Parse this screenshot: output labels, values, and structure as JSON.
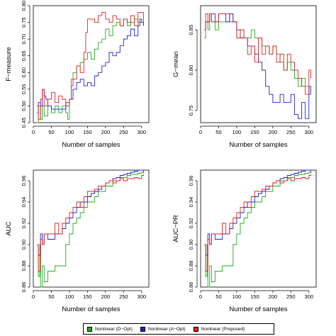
{
  "chart_data": [
    {
      "type": "line",
      "ylabel": "F−measure",
      "xlabel": "Number of samples",
      "xlim": [
        0,
        320
      ],
      "ylim": [
        0.45,
        0.8
      ],
      "xticks": [
        0,
        50,
        100,
        150,
        200,
        250,
        300
      ],
      "yticks": [
        0.45,
        0.5,
        0.55,
        0.6,
        0.65,
        0.7,
        0.75,
        0.8
      ],
      "ytick_labels": [
        "0.45",
        "0.50",
        "0.55",
        "0.60",
        "0.65",
        "0.70",
        "0.75",
        "0.80"
      ],
      "series": [
        {
          "name": "Nonlinear (D−Opt)",
          "x": [
            10,
            14,
            20,
            25,
            30,
            40,
            50,
            60,
            70,
            80,
            90,
            95,
            100,
            105,
            110,
            120,
            130,
            140,
            150,
            160,
            170,
            180,
            190,
            200,
            210,
            220,
            230,
            240,
            250,
            260,
            270,
            280,
            290,
            300,
            305
          ],
          "y": [
            0.45,
            0.5,
            0.46,
            0.5,
            0.47,
            0.5,
            0.48,
            0.5,
            0.48,
            0.5,
            0.48,
            0.46,
            0.52,
            0.58,
            0.6,
            0.62,
            0.63,
            0.64,
            0.66,
            0.64,
            0.67,
            0.69,
            0.7,
            0.73,
            0.71,
            0.74,
            0.75,
            0.74,
            0.76,
            0.74,
            0.75,
            0.76,
            0.75,
            0.75,
            0.74
          ]
        },
        {
          "name": "Nonlinear (A−Opt)",
          "x": [
            10,
            14,
            20,
            25,
            30,
            35,
            40,
            50,
            60,
            70,
            80,
            90,
            100,
            110,
            120,
            130,
            140,
            150,
            160,
            170,
            180,
            190,
            200,
            210,
            220,
            230,
            240,
            250,
            260,
            270,
            280,
            290,
            295,
            300,
            305
          ],
          "y": [
            0.48,
            0.51,
            0.5,
            0.55,
            0.53,
            0.52,
            0.5,
            0.49,
            0.49,
            0.49,
            0.49,
            0.51,
            0.52,
            0.55,
            0.57,
            0.58,
            0.56,
            0.57,
            0.56,
            0.59,
            0.6,
            0.62,
            0.63,
            0.66,
            0.65,
            0.66,
            0.68,
            0.7,
            0.71,
            0.73,
            0.71,
            0.74,
            0.76,
            0.75,
            0.74
          ]
        },
        {
          "name": "Nonlinear (Proposed)",
          "x": [
            10,
            14,
            20,
            25,
            30,
            40,
            50,
            60,
            70,
            80,
            90,
            100,
            105,
            110,
            120,
            130,
            140,
            145,
            150,
            160,
            170,
            180,
            190,
            200,
            210,
            220,
            230,
            240,
            250,
            260,
            270,
            280,
            290,
            300,
            305
          ],
          "y": [
            0.5,
            0.46,
            0.52,
            0.55,
            0.5,
            0.52,
            0.54,
            0.51,
            0.53,
            0.52,
            0.5,
            0.52,
            0.56,
            0.58,
            0.62,
            0.6,
            0.66,
            0.72,
            0.76,
            0.76,
            0.75,
            0.77,
            0.78,
            0.76,
            0.75,
            0.77,
            0.76,
            0.74,
            0.76,
            0.75,
            0.77,
            0.74,
            0.78,
            0.78,
            0.75
          ]
        }
      ]
    },
    {
      "type": "line",
      "ylabel": "G−mean",
      "xlabel": "Number of samples",
      "xlim": [
        0,
        320
      ],
      "ylim": [
        0.735,
        0.88
      ],
      "xticks": [
        0,
        50,
        100,
        150,
        200,
        250,
        300
      ],
      "yticks": [
        0.75,
        0.8,
        0.85
      ],
      "ytick_labels": [
        "0.75",
        "0.80",
        "0.85"
      ],
      "series": [
        {
          "name": "Nonlinear (D−Opt)",
          "x": [
            10,
            14,
            20,
            25,
            30,
            40,
            50,
            60,
            70,
            80,
            90,
            100,
            110,
            120,
            130,
            140,
            150,
            160,
            170,
            180,
            190,
            200,
            210,
            220,
            230,
            240,
            250,
            260,
            270,
            280,
            290,
            300,
            305
          ],
          "y": [
            0.84,
            0.86,
            0.85,
            0.87,
            0.86,
            0.85,
            0.86,
            0.86,
            0.86,
            0.87,
            0.86,
            0.84,
            0.85,
            0.84,
            0.84,
            0.85,
            0.84,
            0.84,
            0.83,
            0.83,
            0.82,
            0.83,
            0.82,
            0.81,
            0.8,
            0.81,
            0.8,
            0.79,
            0.78,
            0.79,
            0.78,
            0.77,
            0.77
          ]
        },
        {
          "name": "Nonlinear (A−Opt)",
          "x": [
            10,
            14,
            20,
            25,
            30,
            40,
            50,
            60,
            70,
            80,
            90,
            100,
            110,
            120,
            130,
            140,
            150,
            160,
            170,
            180,
            190,
            200,
            210,
            220,
            230,
            240,
            250,
            260,
            270,
            280,
            290,
            300,
            305
          ],
          "y": [
            0.85,
            0.86,
            0.86,
            0.87,
            0.87,
            0.86,
            0.87,
            0.87,
            0.86,
            0.87,
            0.86,
            0.85,
            0.84,
            0.84,
            0.83,
            0.83,
            0.82,
            0.81,
            0.8,
            0.78,
            0.77,
            0.76,
            0.76,
            0.77,
            0.76,
            0.76,
            0.77,
            0.745,
            0.74,
            0.76,
            0.74,
            0.78,
            0.77
          ]
        },
        {
          "name": "Nonlinear (Proposed)",
          "x": [
            10,
            14,
            20,
            25,
            30,
            40,
            50,
            60,
            70,
            80,
            90,
            100,
            110,
            120,
            130,
            140,
            150,
            160,
            170,
            180,
            190,
            200,
            210,
            220,
            230,
            240,
            250,
            260,
            270,
            280,
            290,
            300,
            305
          ],
          "y": [
            0.85,
            0.87,
            0.86,
            0.87,
            0.86,
            0.86,
            0.87,
            0.87,
            0.87,
            0.86,
            0.86,
            0.84,
            0.85,
            0.84,
            0.82,
            0.83,
            0.81,
            0.84,
            0.82,
            0.83,
            0.82,
            0.83,
            0.81,
            0.82,
            0.8,
            0.82,
            0.81,
            0.8,
            0.79,
            0.78,
            0.77,
            0.8,
            0.79
          ]
        }
      ]
    },
    {
      "type": "line",
      "ylabel": "AUC",
      "xlabel": "Number of samples",
      "xlim": [
        0,
        320
      ],
      "ylim": [
        0.86,
        0.97
      ],
      "xticks": [
        0,
        50,
        100,
        150,
        200,
        250,
        300
      ],
      "yticks": [
        0.86,
        0.88,
        0.9,
        0.92,
        0.94,
        0.96
      ],
      "ytick_labels": [
        "0.86",
        "0.88",
        "0.90",
        "0.92",
        "0.94",
        "0.96"
      ],
      "series": [
        {
          "name": "Nonlinear (D−Opt)",
          "x": [
            10,
            14,
            18,
            20,
            25,
            30,
            40,
            50,
            60,
            70,
            80,
            90,
            100,
            110,
            120,
            130,
            140,
            150,
            160,
            170,
            180,
            190,
            200,
            210,
            220,
            230,
            240,
            250,
            260,
            270,
            280,
            290,
            300,
            305
          ],
          "y": [
            0.9,
            0.87,
            0.9,
            0.86,
            0.88,
            0.865,
            0.875,
            0.875,
            0.88,
            0.88,
            0.88,
            0.9,
            0.91,
            0.92,
            0.925,
            0.93,
            0.935,
            0.94,
            0.94,
            0.945,
            0.95,
            0.95,
            0.955,
            0.955,
            0.96,
            0.96,
            0.963,
            0.963,
            0.965,
            0.966,
            0.966,
            0.967,
            0.968,
            0.967
          ]
        },
        {
          "name": "Nonlinear (A−Opt)",
          "x": [
            10,
            14,
            20,
            25,
            30,
            40,
            50,
            60,
            70,
            80,
            90,
            100,
            110,
            120,
            130,
            140,
            150,
            160,
            170,
            180,
            190,
            200,
            210,
            220,
            230,
            240,
            250,
            260,
            270,
            280,
            290,
            300,
            305
          ],
          "y": [
            0.9,
            0.89,
            0.91,
            0.9,
            0.91,
            0.905,
            0.905,
            0.91,
            0.91,
            0.915,
            0.92,
            0.925,
            0.93,
            0.935,
            0.94,
            0.94,
            0.945,
            0.948,
            0.95,
            0.952,
            0.955,
            0.958,
            0.96,
            0.962,
            0.963,
            0.965,
            0.966,
            0.967,
            0.968,
            0.969,
            0.97,
            0.97,
            0.968
          ]
        },
        {
          "name": "Nonlinear (Proposed)",
          "x": [
            10,
            14,
            20,
            25,
            30,
            40,
            50,
            60,
            70,
            80,
            90,
            100,
            110,
            120,
            130,
            140,
            150,
            160,
            170,
            180,
            190,
            200,
            210,
            220,
            230,
            240,
            250,
            260,
            270,
            280,
            290,
            300,
            305
          ],
          "y": [
            0.9,
            0.875,
            0.905,
            0.9,
            0.91,
            0.91,
            0.91,
            0.92,
            0.91,
            0.92,
            0.925,
            0.93,
            0.935,
            0.94,
            0.935,
            0.945,
            0.95,
            0.95,
            0.952,
            0.955,
            0.955,
            0.958,
            0.96,
            0.958,
            0.96,
            0.962,
            0.96,
            0.962,
            0.962,
            0.963,
            0.962,
            0.965,
            0.966
          ]
        }
      ]
    },
    {
      "type": "line",
      "ylabel": "AUC−PR",
      "xlabel": "Number of samples",
      "xlim": [
        0,
        320
      ],
      "ylim": [
        0.86,
        0.97
      ],
      "xticks": [
        0,
        50,
        100,
        150,
        200,
        250,
        300
      ],
      "yticks": [
        0.86,
        0.88,
        0.9,
        0.92,
        0.94,
        0.96
      ],
      "ytick_labels": [
        "0.86",
        "0.88",
        "0.90",
        "0.92",
        "0.94",
        "0.96"
      ],
      "series": [
        {
          "name": "Nonlinear (D−Opt)",
          "x": [
            10,
            14,
            18,
            20,
            25,
            30,
            40,
            50,
            60,
            70,
            80,
            90,
            100,
            110,
            120,
            130,
            140,
            150,
            160,
            170,
            180,
            190,
            200,
            210,
            220,
            230,
            240,
            250,
            260,
            270,
            280,
            290,
            300,
            305
          ],
          "y": [
            0.9,
            0.87,
            0.9,
            0.86,
            0.88,
            0.865,
            0.875,
            0.875,
            0.88,
            0.88,
            0.88,
            0.9,
            0.91,
            0.92,
            0.925,
            0.93,
            0.935,
            0.94,
            0.94,
            0.945,
            0.95,
            0.95,
            0.955,
            0.955,
            0.96,
            0.96,
            0.963,
            0.963,
            0.965,
            0.966,
            0.966,
            0.967,
            0.968,
            0.967
          ]
        },
        {
          "name": "Nonlinear (A−Opt)",
          "x": [
            10,
            14,
            20,
            25,
            30,
            40,
            50,
            60,
            70,
            80,
            90,
            100,
            110,
            120,
            130,
            140,
            150,
            160,
            170,
            180,
            190,
            200,
            210,
            220,
            230,
            240,
            250,
            260,
            270,
            280,
            290,
            300,
            305
          ],
          "y": [
            0.9,
            0.89,
            0.91,
            0.9,
            0.91,
            0.905,
            0.905,
            0.91,
            0.91,
            0.915,
            0.92,
            0.925,
            0.93,
            0.935,
            0.94,
            0.94,
            0.945,
            0.948,
            0.95,
            0.952,
            0.955,
            0.958,
            0.96,
            0.962,
            0.963,
            0.965,
            0.966,
            0.967,
            0.968,
            0.969,
            0.97,
            0.97,
            0.968
          ]
        },
        {
          "name": "Nonlinear (Proposed)",
          "x": [
            10,
            14,
            20,
            25,
            30,
            40,
            50,
            60,
            70,
            80,
            90,
            100,
            110,
            120,
            130,
            140,
            150,
            160,
            170,
            180,
            190,
            200,
            210,
            220,
            230,
            240,
            250,
            260,
            270,
            280,
            290,
            300,
            305
          ],
          "y": [
            0.9,
            0.875,
            0.905,
            0.9,
            0.91,
            0.91,
            0.91,
            0.92,
            0.91,
            0.92,
            0.925,
            0.93,
            0.935,
            0.94,
            0.935,
            0.945,
            0.95,
            0.95,
            0.952,
            0.955,
            0.955,
            0.958,
            0.96,
            0.958,
            0.96,
            0.962,
            0.96,
            0.962,
            0.962,
            0.963,
            0.962,
            0.965,
            0.966
          ]
        }
      ]
    }
  ],
  "legend": {
    "placement": "bottom",
    "items": [
      {
        "label": "Nonlinear (D−Opt)",
        "color": "#22aa22"
      },
      {
        "label": "Nonlinear (A−Opt)",
        "color": "#2222cc"
      },
      {
        "label": "Nonlinear (Proposed)",
        "color": "#dd2222"
      }
    ]
  },
  "series_colors": [
    "#22aa22",
    "#2222cc",
    "#dd2222"
  ]
}
